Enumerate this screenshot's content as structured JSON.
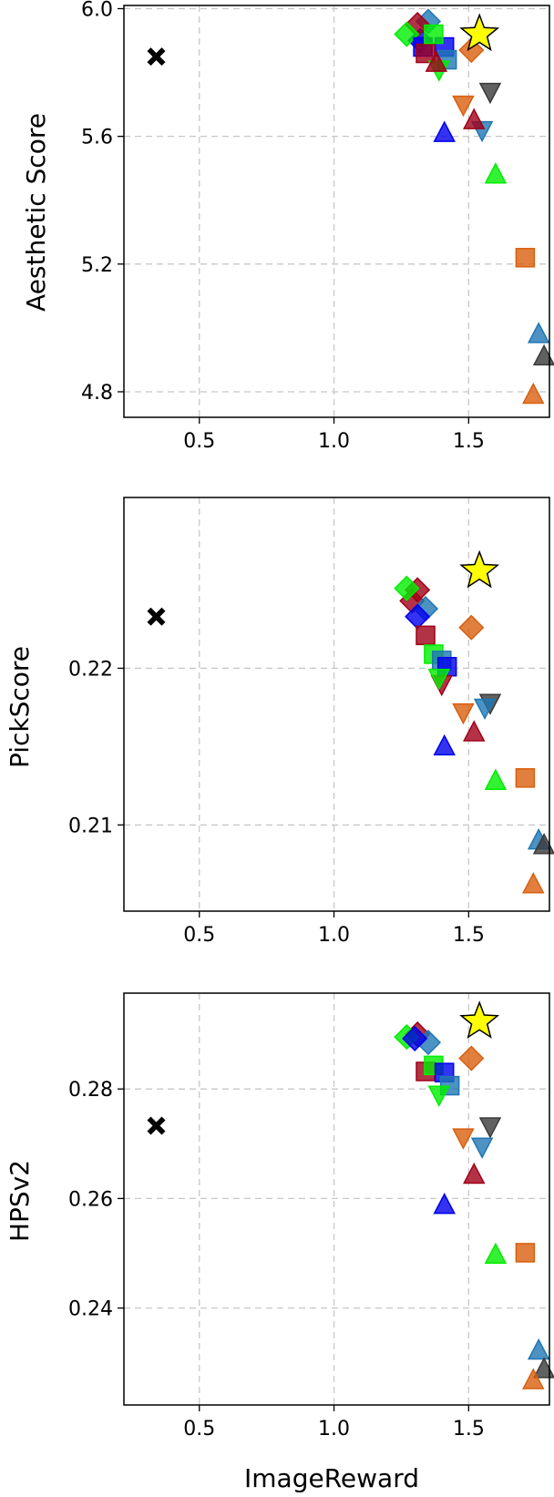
{
  "figure": {
    "xlabel": "ImageReward",
    "x_ticks": [
      "0.5",
      "1.0",
      "1.5"
    ]
  },
  "colors": {
    "tab_blue": "#1f77b4",
    "tab_orange": "#d95f0e",
    "tab_gray": "#3a3a3a",
    "blue": "#0000ee",
    "green": "#00ee00",
    "dark_red": "#a00018",
    "yellow": "#ffff00",
    "black": "#000000",
    "grid": "#c8c8c8"
  },
  "chart_data": [
    {
      "type": "scatter",
      "ylabel": "Aesthetic Score",
      "xlim": [
        0.22,
        1.8
      ],
      "ylim": [
        4.72,
        6.01
      ],
      "y_ticks": [
        4.8,
        5.2,
        5.6,
        6.0
      ],
      "y_tick_labels": [
        "4.8",
        "5.2",
        "5.6",
        "6.0"
      ],
      "x_ticks": [
        0.5,
        1.0,
        1.5
      ],
      "grid": true,
      "points": [
        {
          "x": 0.34,
          "y": 5.85,
          "marker": "X",
          "color": "black"
        },
        {
          "x": 1.33,
          "y": 5.88,
          "marker": "s",
          "color": "blue"
        },
        {
          "x": 1.32,
          "y": 5.9,
          "marker": "D",
          "color": "blue"
        },
        {
          "x": 1.35,
          "y": 5.96,
          "marker": "D",
          "color": "tab_blue"
        },
        {
          "x": 1.41,
          "y": 5.88,
          "marker": "s",
          "color": "blue"
        },
        {
          "x": 1.42,
          "y": 5.84,
          "marker": "s",
          "color": "tab_blue"
        },
        {
          "x": 1.31,
          "y": 5.95,
          "marker": "D",
          "color": "dark_red"
        },
        {
          "x": 1.34,
          "y": 5.86,
          "marker": "s",
          "color": "dark_red"
        },
        {
          "x": 1.38,
          "y": 5.83,
          "marker": "^",
          "color": "dark_red"
        },
        {
          "x": 1.27,
          "y": 5.92,
          "marker": "D",
          "color": "green"
        },
        {
          "x": 1.37,
          "y": 5.92,
          "marker": "s",
          "color": "green"
        },
        {
          "x": 1.39,
          "y": 5.81,
          "marker": "v",
          "color": "green"
        },
        {
          "x": 1.51,
          "y": 5.87,
          "marker": "D",
          "color": "tab_orange"
        },
        {
          "x": 1.48,
          "y": 5.7,
          "marker": "v",
          "color": "tab_orange"
        },
        {
          "x": 1.58,
          "y": 5.74,
          "marker": "v",
          "color": "tab_gray"
        },
        {
          "x": 1.52,
          "y": 5.65,
          "marker": "^",
          "color": "dark_red"
        },
        {
          "x": 1.55,
          "y": 5.62,
          "marker": "v",
          "color": "tab_blue"
        },
        {
          "x": 1.41,
          "y": 5.61,
          "marker": "^",
          "color": "blue"
        },
        {
          "x": 1.6,
          "y": 5.48,
          "marker": "^",
          "color": "green"
        },
        {
          "x": 1.71,
          "y": 5.22,
          "marker": "s",
          "color": "tab_orange"
        },
        {
          "x": 1.76,
          "y": 4.98,
          "marker": "^",
          "color": "tab_blue"
        },
        {
          "x": 1.78,
          "y": 4.91,
          "marker": "^",
          "color": "tab_gray"
        },
        {
          "x": 1.74,
          "y": 4.79,
          "marker": "^",
          "color": "tab_orange"
        },
        {
          "x": 1.54,
          "y": 5.92,
          "marker": "*",
          "color": "yellow"
        }
      ]
    },
    {
      "type": "scatter",
      "ylabel": "PickScore",
      "xlim": [
        0.22,
        1.8
      ],
      "ylim": [
        0.2045,
        0.2309
      ],
      "y_ticks": [
        0.21,
        0.22
      ],
      "y_tick_labels": [
        "0.21",
        "0.22"
      ],
      "x_ticks": [
        0.5,
        1.0,
        1.5
      ],
      "grid": true,
      "points": [
        {
          "x": 0.34,
          "y": 0.2233,
          "marker": "X",
          "color": "black"
        },
        {
          "x": 1.29,
          "y": 0.2243,
          "marker": "D",
          "color": "dark_red"
        },
        {
          "x": 1.31,
          "y": 0.225,
          "marker": "D",
          "color": "dark_red"
        },
        {
          "x": 1.27,
          "y": 0.2251,
          "marker": "D",
          "color": "green"
        },
        {
          "x": 1.34,
          "y": 0.2238,
          "marker": "D",
          "color": "tab_blue"
        },
        {
          "x": 1.31,
          "y": 0.2233,
          "marker": "D",
          "color": "blue"
        },
        {
          "x": 1.34,
          "y": 0.2221,
          "marker": "s",
          "color": "dark_red"
        },
        {
          "x": 1.37,
          "y": 0.2209,
          "marker": "s",
          "color": "green"
        },
        {
          "x": 1.4,
          "y": 0.2205,
          "marker": "s",
          "color": "tab_blue"
        },
        {
          "x": 1.42,
          "y": 0.2201,
          "marker": "s",
          "color": "blue"
        },
        {
          "x": 1.51,
          "y": 0.2226,
          "marker": "D",
          "color": "tab_orange"
        },
        {
          "x": 1.4,
          "y": 0.219,
          "marker": "v",
          "color": "dark_red"
        },
        {
          "x": 1.39,
          "y": 0.2194,
          "marker": "v",
          "color": "green"
        },
        {
          "x": 1.58,
          "y": 0.2178,
          "marker": "v",
          "color": "tab_gray"
        },
        {
          "x": 1.56,
          "y": 0.2175,
          "marker": "v",
          "color": "tab_blue"
        },
        {
          "x": 1.48,
          "y": 0.2172,
          "marker": "v",
          "color": "tab_orange"
        },
        {
          "x": 1.52,
          "y": 0.2159,
          "marker": "^",
          "color": "dark_red"
        },
        {
          "x": 1.41,
          "y": 0.215,
          "marker": "^",
          "color": "blue"
        },
        {
          "x": 1.6,
          "y": 0.2128,
          "marker": "^",
          "color": "green"
        },
        {
          "x": 1.71,
          "y": 0.213,
          "marker": "s",
          "color": "tab_orange"
        },
        {
          "x": 1.76,
          "y": 0.209,
          "marker": "^",
          "color": "tab_blue"
        },
        {
          "x": 1.78,
          "y": 0.2087,
          "marker": "^",
          "color": "tab_gray"
        },
        {
          "x": 1.74,
          "y": 0.2062,
          "marker": "^",
          "color": "tab_orange"
        },
        {
          "x": 1.54,
          "y": 0.2262,
          "marker": "*",
          "color": "yellow"
        }
      ]
    },
    {
      "type": "scatter",
      "ylabel": "HPSv2",
      "xlim": [
        0.22,
        1.8
      ],
      "ylim": [
        0.2223,
        0.2975
      ],
      "y_ticks": [
        0.24,
        0.26,
        0.28
      ],
      "y_tick_labels": [
        "0.24",
        "0.26",
        "0.28"
      ],
      "x_ticks": [
        0.5,
        1.0,
        1.5
      ],
      "grid": true,
      "points": [
        {
          "x": 0.34,
          "y": 0.2733,
          "marker": "X",
          "color": "black"
        },
        {
          "x": 1.31,
          "y": 0.29,
          "marker": "D",
          "color": "dark_red"
        },
        {
          "x": 1.27,
          "y": 0.2895,
          "marker": "D",
          "color": "green"
        },
        {
          "x": 1.35,
          "y": 0.2885,
          "marker": "D",
          "color": "tab_blue"
        },
        {
          "x": 1.3,
          "y": 0.2892,
          "marker": "D",
          "color": "blue"
        },
        {
          "x": 1.34,
          "y": 0.2832,
          "marker": "s",
          "color": "dark_red"
        },
        {
          "x": 1.37,
          "y": 0.2843,
          "marker": "s",
          "color": "green"
        },
        {
          "x": 1.41,
          "y": 0.283,
          "marker": "s",
          "color": "blue"
        },
        {
          "x": 1.43,
          "y": 0.2806,
          "marker": "s",
          "color": "tab_blue"
        },
        {
          "x": 1.51,
          "y": 0.2856,
          "marker": "D",
          "color": "tab_orange"
        },
        {
          "x": 1.39,
          "y": 0.279,
          "marker": "v",
          "color": "green"
        },
        {
          "x": 1.58,
          "y": 0.2732,
          "marker": "v",
          "color": "tab_gray"
        },
        {
          "x": 1.48,
          "y": 0.2712,
          "marker": "v",
          "color": "tab_orange"
        },
        {
          "x": 1.55,
          "y": 0.2695,
          "marker": "v",
          "color": "tab_blue"
        },
        {
          "x": 1.52,
          "y": 0.2643,
          "marker": "^",
          "color": "dark_red"
        },
        {
          "x": 1.41,
          "y": 0.2588,
          "marker": "^",
          "color": "blue"
        },
        {
          "x": 1.6,
          "y": 0.2497,
          "marker": "^",
          "color": "green"
        },
        {
          "x": 1.71,
          "y": 0.2501,
          "marker": "s",
          "color": "tab_orange"
        },
        {
          "x": 1.76,
          "y": 0.2322,
          "marker": "^",
          "color": "tab_blue"
        },
        {
          "x": 1.78,
          "y": 0.2288,
          "marker": "^",
          "color": "tab_gray"
        },
        {
          "x": 1.74,
          "y": 0.2268,
          "marker": "^",
          "color": "tab_orange"
        },
        {
          "x": 1.54,
          "y": 0.2923,
          "marker": "*",
          "color": "yellow"
        }
      ]
    }
  ]
}
